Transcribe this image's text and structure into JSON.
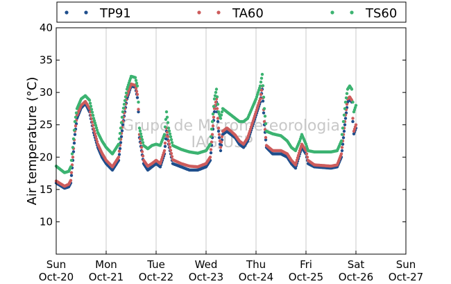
{
  "chart_data": {
    "type": "scatter",
    "ylabel": "Air temperature (°C)",
    "ylim": [
      5,
      40
    ],
    "yticks": [
      10,
      15,
      20,
      25,
      30,
      35,
      40
    ],
    "xlim": [
      "2013-10-20T00:00",
      "2013-10-27T00:00"
    ],
    "xticks": [
      {
        "weekday": "Sun",
        "date": "Oct-20"
      },
      {
        "weekday": "Mon",
        "date": "Oct-21"
      },
      {
        "weekday": "Tue",
        "date": "Oct-22"
      },
      {
        "weekday": "Wed",
        "date": "Oct-23"
      },
      {
        "weekday": "Thu",
        "date": "Oct-24"
      },
      {
        "weekday": "Fri",
        "date": "Oct-25"
      },
      {
        "weekday": "Sat",
        "date": "Oct-26"
      },
      {
        "weekday": "Sun",
        "date": "Oct-27"
      }
    ],
    "grid": "vertical",
    "legend_position": "top",
    "watermark": [
      "Grupo de Micrometeorologia",
      "IAG/USP"
    ],
    "series": [
      {
        "name": "TP91",
        "color": "#1f4e8c",
        "points": [
          [
            "10-20 00:00",
            16.0
          ],
          [
            "10-20 02:00",
            15.6
          ],
          [
            "10-20 04:00",
            15.2
          ],
          [
            "10-20 06:00",
            15.4
          ],
          [
            "10-20 07:00",
            16.0
          ],
          [
            "10-20 08:00",
            19.5
          ],
          [
            "10-20 09:00",
            23.5
          ],
          [
            "10-20 10:00",
            26.0
          ],
          [
            "10-20 12:00",
            27.6
          ],
          [
            "10-20 14:00",
            28.3
          ],
          [
            "10-20 16:00",
            27.0
          ],
          [
            "10-20 18:00",
            23.8
          ],
          [
            "10-20 20:00",
            21.5
          ],
          [
            "10-20 22:00",
            20.0
          ],
          [
            "10-21 00:00",
            19.0
          ],
          [
            "10-21 03:00",
            18.0
          ],
          [
            "10-21 06:00",
            19.5
          ],
          [
            "10-21 08:00",
            25.0
          ],
          [
            "10-21 10:00",
            29.0
          ],
          [
            "10-21 12:00",
            31.0
          ],
          [
            "10-21 14:00",
            30.8
          ],
          [
            "10-21 15:00",
            29.2
          ],
          [
            "10-21 15:30",
            27.0
          ],
          [
            "10-21 16:00",
            23.0
          ],
          [
            "10-21 18:00",
            19.0
          ],
          [
            "10-21 20:00",
            18.0
          ],
          [
            "10-21 22:00",
            18.5
          ],
          [
            "10-22 00:00",
            19.0
          ],
          [
            "10-22 02:00",
            18.5
          ],
          [
            "10-22 04:00",
            20.5
          ],
          [
            "10-22 05:00",
            24.0
          ],
          [
            "10-22 06:00",
            22.0
          ],
          [
            "10-22 08:00",
            19.0
          ],
          [
            "10-22 12:00",
            18.5
          ],
          [
            "10-22 16:00",
            18.0
          ],
          [
            "10-22 20:00",
            18.0
          ],
          [
            "10-23 00:00",
            18.5
          ],
          [
            "10-23 02:00",
            19.5
          ],
          [
            "10-23 03:00",
            23.0
          ],
          [
            "10-23 04:00",
            27.0
          ],
          [
            "10-23 05:00",
            28.5
          ],
          [
            "10-23 06:00",
            24.0
          ],
          [
            "10-23 07:00",
            21.0
          ],
          [
            "10-23 08:00",
            23.5
          ],
          [
            "10-23 10:00",
            24.0
          ],
          [
            "10-23 12:00",
            23.5
          ],
          [
            "10-23 14:00",
            23.0
          ],
          [
            "10-23 16:00",
            22.0
          ],
          [
            "10-23 18:00",
            21.5
          ],
          [
            "10-23 20:00",
            22.5
          ],
          [
            "10-23 22:00",
            24.5
          ],
          [
            "10-24 00:00",
            26.5
          ],
          [
            "10-24 02:00",
            28.5
          ],
          [
            "10-24 03:00",
            30.5
          ],
          [
            "10-24 04:00",
            25.0
          ],
          [
            "10-24 05:00",
            21.5
          ],
          [
            "10-24 08:00",
            20.5
          ],
          [
            "10-24 12:00",
            20.5
          ],
          [
            "10-24 15:00",
            20.0
          ],
          [
            "10-24 17:00",
            19.0
          ],
          [
            "10-24 19:00",
            18.3
          ],
          [
            "10-24 21:00",
            20.5
          ],
          [
            "10-24 22:00",
            21.5
          ],
          [
            "10-25 00:00",
            20.5
          ],
          [
            "10-25 01:00",
            19.0
          ],
          [
            "10-25 04:00",
            18.5
          ],
          [
            "10-25 08:00",
            18.4
          ],
          [
            "10-25 12:00",
            18.3
          ],
          [
            "10-25 15:00",
            18.5
          ],
          [
            "10-25 17:00",
            20.0
          ],
          [
            "10-25 18:00",
            23.0
          ],
          [
            "10-25 19:00",
            26.0
          ],
          [
            "10-25 20:00",
            28.5
          ],
          [
            "10-25 21:00",
            29.0
          ],
          [
            "10-25 22:00",
            28.5
          ],
          [
            "10-25 22:30",
            25.5
          ],
          [
            "10-25 23:00",
            23.6
          ],
          [
            "10-26 00:00",
            24.5
          ]
        ]
      },
      {
        "name": "TA60",
        "color": "#cd5c5c",
        "points": [
          [
            "10-20 00:00",
            16.3
          ],
          [
            "10-20 02:00",
            15.9
          ],
          [
            "10-20 04:00",
            15.5
          ],
          [
            "10-20 06:00",
            15.8
          ],
          [
            "10-20 07:00",
            16.4
          ],
          [
            "10-20 08:00",
            20.0
          ],
          [
            "10-20 09:00",
            24.0
          ],
          [
            "10-20 10:00",
            26.5
          ],
          [
            "10-20 12:00",
            28.0
          ],
          [
            "10-20 14:00",
            28.6
          ],
          [
            "10-20 16:00",
            27.5
          ],
          [
            "10-20 18:00",
            24.4
          ],
          [
            "10-20 20:00",
            22.0
          ],
          [
            "10-20 22:00",
            20.6
          ],
          [
            "10-21 00:00",
            19.5
          ],
          [
            "10-21 03:00",
            18.5
          ],
          [
            "10-21 06:00",
            20.0
          ],
          [
            "10-21 08:00",
            25.5
          ],
          [
            "10-21 10:00",
            29.5
          ],
          [
            "10-21 12:00",
            31.3
          ],
          [
            "10-21 14:00",
            31.1
          ],
          [
            "10-21 15:00",
            29.7
          ],
          [
            "10-21 15:30",
            27.4
          ],
          [
            "10-21 16:00",
            23.5
          ],
          [
            "10-21 18:00",
            19.5
          ],
          [
            "10-21 20:00",
            18.6
          ],
          [
            "10-21 22:00",
            19.0
          ],
          [
            "10-22 00:00",
            19.5
          ],
          [
            "10-22 02:00",
            19.0
          ],
          [
            "10-22 04:00",
            21.0
          ],
          [
            "10-22 05:00",
            24.5
          ],
          [
            "10-22 06:00",
            22.5
          ],
          [
            "10-22 08:00",
            19.6
          ],
          [
            "10-22 12:00",
            19.0
          ],
          [
            "10-22 16:00",
            18.6
          ],
          [
            "10-22 20:00",
            18.5
          ],
          [
            "10-23 00:00",
            19.0
          ],
          [
            "10-23 02:00",
            20.0
          ],
          [
            "10-23 03:00",
            23.5
          ],
          [
            "10-23 04:00",
            27.5
          ],
          [
            "10-23 05:00",
            29.0
          ],
          [
            "10-23 06:00",
            24.5
          ],
          [
            "10-23 07:00",
            21.5
          ],
          [
            "10-23 08:00",
            24.0
          ],
          [
            "10-23 10:00",
            24.5
          ],
          [
            "10-23 12:00",
            24.0
          ],
          [
            "10-23 14:00",
            23.4
          ],
          [
            "10-23 16:00",
            22.5
          ],
          [
            "10-23 18:00",
            22.0
          ],
          [
            "10-23 20:00",
            23.0
          ],
          [
            "10-23 22:00",
            25.0
          ],
          [
            "10-24 00:00",
            27.0
          ],
          [
            "10-24 02:00",
            29.0
          ],
          [
            "10-24 03:00",
            31.0
          ],
          [
            "10-24 04:00",
            25.5
          ],
          [
            "10-24 05:00",
            21.8
          ],
          [
            "10-24 08:00",
            21.0
          ],
          [
            "10-24 12:00",
            21.0
          ],
          [
            "10-24 15:00",
            20.5
          ],
          [
            "10-24 17:00",
            19.5
          ],
          [
            "10-24 19:00",
            18.8
          ],
          [
            "10-24 21:00",
            21.0
          ],
          [
            "10-24 22:00",
            22.0
          ],
          [
            "10-25 00:00",
            21.0
          ],
          [
            "10-25 01:00",
            19.5
          ],
          [
            "10-25 04:00",
            18.8
          ],
          [
            "10-25 08:00",
            18.7
          ],
          [
            "10-25 12:00",
            18.6
          ],
          [
            "10-25 15:00",
            18.8
          ],
          [
            "10-25 17:00",
            20.5
          ],
          [
            "10-25 18:00",
            23.5
          ],
          [
            "10-25 19:00",
            26.5
          ],
          [
            "10-25 20:00",
            29.0
          ],
          [
            "10-25 21:00",
            29.3
          ],
          [
            "10-25 22:00",
            28.8
          ],
          [
            "10-25 22:30",
            26.0
          ],
          [
            "10-25 23:00",
            24.0
          ],
          [
            "10-26 00:00",
            25.0
          ]
        ]
      },
      {
        "name": "TS60",
        "color": "#3cb371",
        "points": [
          [
            "10-20 00:00",
            18.6
          ],
          [
            "10-20 02:00",
            18.1
          ],
          [
            "10-20 04:00",
            17.6
          ],
          [
            "10-20 06:00",
            17.8
          ],
          [
            "10-20 07:00",
            18.5
          ],
          [
            "10-20 08:00",
            21.5
          ],
          [
            "10-20 09:00",
            25.5
          ],
          [
            "10-20 10:00",
            27.5
          ],
          [
            "10-20 12:00",
            29.0
          ],
          [
            "10-20 14:00",
            29.5
          ],
          [
            "10-20 16:00",
            28.8
          ],
          [
            "10-20 18:00",
            26.0
          ],
          [
            "10-20 20:00",
            23.8
          ],
          [
            "10-20 22:00",
            22.5
          ],
          [
            "10-21 00:00",
            21.5
          ],
          [
            "10-21 03:00",
            20.5
          ],
          [
            "10-21 06:00",
            22.0
          ],
          [
            "10-21 08:00",
            27.0
          ],
          [
            "10-21 10:00",
            30.5
          ],
          [
            "10-21 12:00",
            32.5
          ],
          [
            "10-21 14:00",
            32.3
          ],
          [
            "10-21 15:00",
            31.0
          ],
          [
            "10-21 15:30",
            28.5
          ],
          [
            "10-21 16:00",
            24.5
          ],
          [
            "10-21 18:00",
            21.8
          ],
          [
            "10-21 20:00",
            21.3
          ],
          [
            "10-21 22:00",
            21.8
          ],
          [
            "10-22 00:00",
            22.0
          ],
          [
            "10-22 02:00",
            21.8
          ],
          [
            "10-22 04:00",
            23.5
          ],
          [
            "10-22 05:00",
            27.0
          ],
          [
            "10-22 06:00",
            24.5
          ],
          [
            "10-22 08:00",
            21.8
          ],
          [
            "10-22 12:00",
            21.2
          ],
          [
            "10-22 16:00",
            20.8
          ],
          [
            "10-22 20:00",
            20.6
          ],
          [
            "10-23 00:00",
            21.0
          ],
          [
            "10-23 02:00",
            22.0
          ],
          [
            "10-23 03:00",
            25.5
          ],
          [
            "10-23 04:00",
            29.0
          ],
          [
            "10-23 05:00",
            30.5
          ],
          [
            "10-23 06:00",
            27.0
          ],
          [
            "10-23 07:00",
            26.0
          ],
          [
            "10-23 08:00",
            27.5
          ],
          [
            "10-23 10:00",
            27.0
          ],
          [
            "10-23 12:00",
            26.5
          ],
          [
            "10-23 14:00",
            26.0
          ],
          [
            "10-23 16:00",
            25.5
          ],
          [
            "10-23 18:00",
            25.5
          ],
          [
            "10-23 20:00",
            26.0
          ],
          [
            "10-23 22:00",
            27.5
          ],
          [
            "10-24 00:00",
            29.0
          ],
          [
            "10-24 02:00",
            31.0
          ],
          [
            "10-24 03:00",
            32.8
          ],
          [
            "10-24 04:00",
            27.5
          ],
          [
            "10-24 05:00",
            24.0
          ],
          [
            "10-24 08:00",
            23.6
          ],
          [
            "10-24 12:00",
            23.3
          ],
          [
            "10-24 15:00",
            22.5
          ],
          [
            "10-24 17:00",
            21.5
          ],
          [
            "10-24 19:00",
            21.0
          ],
          [
            "10-24 21:00",
            22.5
          ],
          [
            "10-24 22:00",
            23.5
          ],
          [
            "10-25 00:00",
            22.0
          ],
          [
            "10-25 01:00",
            21.0
          ],
          [
            "10-25 04:00",
            20.8
          ],
          [
            "10-25 08:00",
            20.8
          ],
          [
            "10-25 12:00",
            20.8
          ],
          [
            "10-25 15:00",
            21.0
          ],
          [
            "10-25 17:00",
            22.5
          ],
          [
            "10-25 18:00",
            25.5
          ],
          [
            "10-25 19:00",
            28.5
          ],
          [
            "10-25 20:00",
            30.5
          ],
          [
            "10-25 21:00",
            31.0
          ],
          [
            "10-25 22:00",
            30.5
          ],
          [
            "10-25 22:30",
            28.5
          ],
          [
            "10-25 23:00",
            27.0
          ],
          [
            "10-26 00:00",
            28.0
          ]
        ]
      }
    ]
  }
}
